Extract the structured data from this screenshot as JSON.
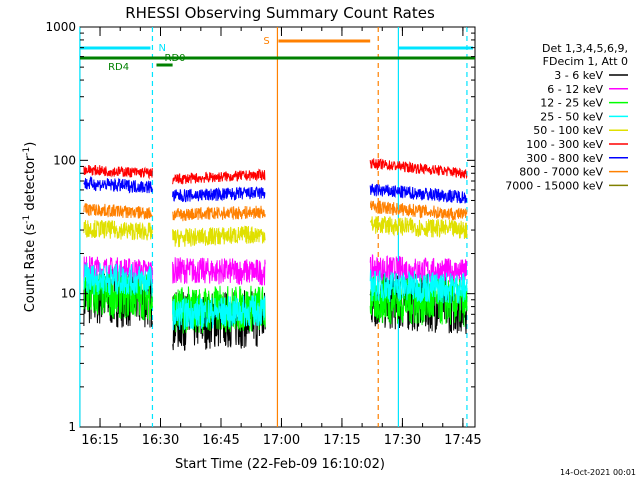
{
  "chart_data": {
    "type": "line",
    "title": "RHESSI Observing Summary Count Rates",
    "xlabel": "Start Time (22-Feb-09 16:10:02)",
    "ylabel_main": "Count Rate (s",
    "ylabel_sup1": "-1",
    "ylabel_mid": " detector",
    "ylabel_sup2": "-1",
    "ylabel_end": ")",
    "footer": "14-Oct-2021 00:01",
    "y_scale": "log",
    "ylim": [
      1,
      1000
    ],
    "xlim": [
      "16:10:02",
      "17:48:00"
    ],
    "x_ticks": [
      "16:15",
      "16:30",
      "16:45",
      "17:00",
      "17:15",
      "17:30",
      "17:45"
    ],
    "y_ticks": [
      "1",
      "10",
      "100",
      "1000"
    ],
    "legend": {
      "header": [
        "Det 1,3,4,5,6,9,",
        "FDecim 1, Att 0"
      ],
      "placement": "right"
    },
    "series": [
      {
        "name": "3 - 6 keV",
        "color": "#000000",
        "segments": [
          {
            "x": [
              "16:11",
              "16:28"
            ],
            "y": [
              9.5,
              9.0
            ]
          },
          {
            "x": [
              "16:33",
              "16:56"
            ],
            "y": [
              6.2,
              6.5
            ]
          },
          {
            "x": [
              "17:22",
              "17:46"
            ],
            "y": [
              9.0,
              8.2
            ]
          }
        ]
      },
      {
        "name": "6 - 12 keV",
        "color": "#ff00ff",
        "segments": [
          {
            "x": [
              "16:11",
              "16:28"
            ],
            "y": [
              15.5,
              14.5
            ]
          },
          {
            "x": [
              "16:33",
              "16:56"
            ],
            "y": [
              15.0,
              14.5
            ]
          },
          {
            "x": [
              "17:22",
              "17:46"
            ],
            "y": [
              15.5,
              14.5
            ]
          }
        ]
      },
      {
        "name": "12 - 25 keV",
        "color": "#00ff00",
        "segments": [
          {
            "x": [
              "16:11",
              "16:28"
            ],
            "y": [
              10.0,
              9.5
            ]
          },
          {
            "x": [
              "16:33",
              "16:56"
            ],
            "y": [
              7.5,
              7.8
            ]
          },
          {
            "x": [
              "17:22",
              "17:46"
            ],
            "y": [
              9.0,
              8.5
            ]
          }
        ]
      },
      {
        "name": "25 - 50 keV",
        "color": "#00ffff",
        "segments": [
          {
            "x": [
              "16:11",
              "16:28"
            ],
            "y": [
              13.0,
              12.5
            ]
          },
          {
            "x": [
              "16:33",
              "16:56"
            ],
            "y": [
              7.0,
              7.5
            ]
          },
          {
            "x": [
              "17:22",
              "17:46"
            ],
            "y": [
              11.5,
              11.0
            ]
          }
        ]
      },
      {
        "name": "50 - 100 keV",
        "color": "#e0e000",
        "segments": [
          {
            "x": [
              "16:11",
              "16:28"
            ],
            "y": [
              31,
              29
            ]
          },
          {
            "x": [
              "16:33",
              "16:56"
            ],
            "y": [
              26,
              28
            ]
          },
          {
            "x": [
              "17:22",
              "17:46"
            ],
            "y": [
              33,
              30
            ]
          }
        ]
      },
      {
        "name": "100 - 300 keV",
        "color": "#ff0000",
        "segments": [
          {
            "x": [
              "16:11",
              "16:28"
            ],
            "y": [
              85,
              80
            ]
          },
          {
            "x": [
              "16:33",
              "16:56"
            ],
            "y": [
              72,
              78
            ]
          },
          {
            "x": [
              "17:22",
              "17:46"
            ],
            "y": [
              95,
              80
            ]
          }
        ]
      },
      {
        "name": "300 - 800 keV",
        "color": "#0000ff",
        "segments": [
          {
            "x": [
              "16:11",
              "16:28"
            ],
            "y": [
              67,
              63
            ]
          },
          {
            "x": [
              "16:33",
              "16:56"
            ],
            "y": [
              54,
              57
            ]
          },
          {
            "x": [
              "17:22",
              "17:46"
            ],
            "y": [
              60,
              53
            ]
          }
        ]
      },
      {
        "name": "800 - 7000 keV",
        "color": "#ff8000",
        "segments": [
          {
            "x": [
              "16:11",
              "16:28"
            ],
            "y": [
              43,
              40
            ]
          },
          {
            "x": [
              "16:33",
              "16:56"
            ],
            "y": [
              39,
              41
            ]
          },
          {
            "x": [
              "17:22",
              "17:46"
            ],
            "y": [
              45,
              39
            ]
          }
        ]
      },
      {
        "name": "7000 - 15000 keV",
        "color": "#808000",
        "segments": []
      }
    ],
    "markers": {
      "dashed_cyan_lines": [
        "16:28",
        "17:46"
      ],
      "solid_cyan_lines": [
        "16:10",
        "17:29"
      ],
      "orange_solid_line": "16:59",
      "orange_dashed_line": "17:24",
      "night_label": "N",
      "saa_label": "S",
      "rd0_label": "RD0",
      "rd4_label": "RD4"
    }
  }
}
